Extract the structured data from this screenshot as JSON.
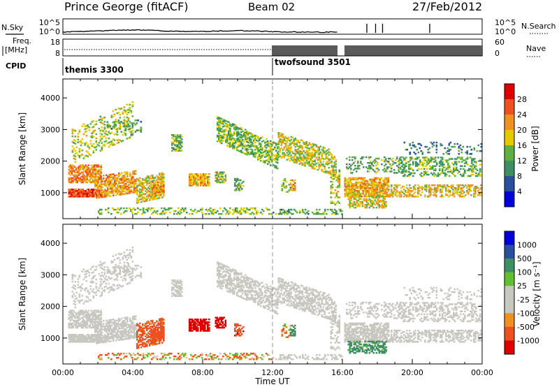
{
  "header": {
    "station": "Prince George (fitACF)",
    "beam": "Beam 02",
    "date": "27/Feb/2012"
  },
  "top_panels": {
    "nsky_label": "N.Sky",
    "nsky_ticks": [
      "10^5",
      "10^0"
    ],
    "nsearch_label": "N.Search",
    "nsearch_ticks": [
      "10^5",
      "10^0"
    ],
    "freq_label_1": "Freq.",
    "freq_label_2": "[MHz]",
    "freq_ticks": [
      "18",
      "8"
    ],
    "nave_label": "Nave",
    "nave_ticks": [
      "60",
      "0"
    ],
    "cpid_label": "CPID",
    "cpid_segments": [
      {
        "name": "themis 3300",
        "start_hour": 0,
        "end_hour": 12
      },
      {
        "name": "twofsound 3501",
        "start_hour": 12,
        "end_hour": 24
      }
    ]
  },
  "colors": {
    "power_scale": [
      "#0000dd",
      "#2a4fa0",
      "#3f8f66",
      "#5fb040",
      "#e6c800",
      "#f09020",
      "#ee5020",
      "#dd0000"
    ],
    "velocity_scale": [
      "#dd0000",
      "#ee5020",
      "#f09020",
      "#c8c8c0",
      "#c8c8c0",
      "#60c030",
      "#3f8f66",
      "#2a4fa0",
      "#0000dd"
    ],
    "velocity_gray": "#c8c8c0"
  },
  "chart_data": [
    {
      "type": "heatmap",
      "panel": "power",
      "ylabel": "Slant Range [km]",
      "ylim": [
        180,
        4600
      ],
      "y_ticks": [
        1000,
        2000,
        3000,
        4000
      ],
      "xlim_hours": [
        0,
        24
      ],
      "colorbar_label": "Power [dB]",
      "colorbar_ticks": [
        "28",
        "24",
        "20",
        "16",
        "12",
        "8",
        "4"
      ],
      "colorbar_range": [
        0,
        32
      ]
    },
    {
      "type": "heatmap",
      "panel": "velocity",
      "ylabel": "Slant Range [km]",
      "ylim": [
        180,
        4600
      ],
      "y_ticks": [
        1000,
        2000,
        3000,
        4000
      ],
      "xlim_hours": [
        0,
        24
      ],
      "xlabel": "Time UT",
      "x_tick_labels": [
        "00:00",
        "04:00",
        "08:00",
        "12:00",
        "16:00",
        "20:00",
        "00:00"
      ],
      "colorbar_label": "Velocity [m s⁻¹]",
      "colorbar_ticks": [
        "1000",
        "500",
        "100",
        "25",
        "-25",
        "-100",
        "-500",
        "-1000"
      ]
    }
  ]
}
